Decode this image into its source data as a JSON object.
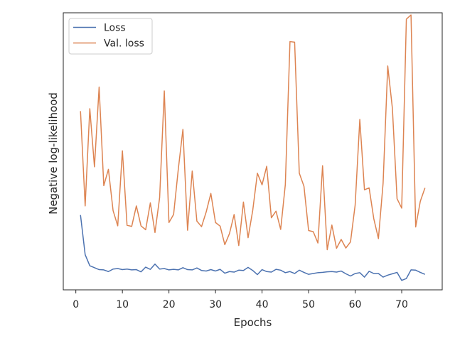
{
  "chart_data": {
    "type": "line",
    "xlabel": "Epochs",
    "ylabel": "Negative log-likelihood",
    "xlim": [
      -2.7,
      78.7
    ],
    "ylim": [
      0,
      1
    ],
    "x_ticks": [
      0,
      10,
      20,
      30,
      40,
      50,
      60,
      70
    ],
    "y_ticks_visible": false,
    "grid": false,
    "legend_placement": "top-left",
    "series": [
      {
        "name": "Loss",
        "color": "#4c72b0",
        "x": [
          1,
          2,
          3,
          4,
          5,
          6,
          7,
          8,
          9,
          10,
          11,
          12,
          13,
          14,
          15,
          16,
          17,
          18,
          19,
          20,
          21,
          22,
          23,
          24,
          25,
          26,
          27,
          28,
          29,
          30,
          31,
          32,
          33,
          34,
          35,
          36,
          37,
          38,
          39,
          40,
          41,
          42,
          43,
          44,
          45,
          46,
          47,
          48,
          49,
          50,
          51,
          52,
          53,
          54,
          55,
          56,
          57,
          58,
          59,
          60,
          61,
          62,
          63,
          64,
          65,
          66,
          67,
          68,
          69,
          70,
          71,
          72,
          73,
          74,
          75
        ],
        "values": [
          0.27,
          0.127,
          0.087,
          0.08,
          0.073,
          0.072,
          0.066,
          0.075,
          0.077,
          0.073,
          0.075,
          0.072,
          0.073,
          0.065,
          0.082,
          0.074,
          0.093,
          0.075,
          0.077,
          0.072,
          0.074,
          0.072,
          0.08,
          0.073,
          0.072,
          0.079,
          0.07,
          0.068,
          0.073,
          0.068,
          0.074,
          0.06,
          0.066,
          0.064,
          0.071,
          0.07,
          0.081,
          0.07,
          0.055,
          0.073,
          0.066,
          0.064,
          0.074,
          0.071,
          0.062,
          0.066,
          0.059,
          0.071,
          0.063,
          0.056,
          0.059,
          0.062,
          0.063,
          0.065,
          0.066,
          0.064,
          0.068,
          0.058,
          0.05,
          0.059,
          0.062,
          0.046,
          0.067,
          0.059,
          0.059,
          0.046,
          0.053,
          0.058,
          0.063,
          0.034,
          0.041,
          0.072,
          0.071,
          0.063,
          0.056
        ]
      },
      {
        "name": "Val. loss",
        "color": "#dd8452",
        "x": [
          1,
          2,
          3,
          4,
          5,
          6,
          7,
          8,
          9,
          10,
          11,
          12,
          13,
          14,
          15,
          16,
          17,
          18,
          19,
          20,
          21,
          22,
          23,
          24,
          25,
          26,
          27,
          28,
          29,
          30,
          31,
          32,
          33,
          34,
          35,
          36,
          37,
          38,
          39,
          40,
          41,
          42,
          43,
          44,
          45,
          46,
          47,
          48,
          49,
          50,
          51,
          52,
          53,
          54,
          55,
          56,
          57,
          58,
          59,
          60,
          61,
          62,
          63,
          64,
          65,
          66,
          67,
          68,
          69,
          70,
          71,
          72,
          73,
          74,
          75
        ],
        "values": [
          0.645,
          0.303,
          0.654,
          0.444,
          0.732,
          0.376,
          0.435,
          0.286,
          0.231,
          0.502,
          0.233,
          0.229,
          0.303,
          0.231,
          0.217,
          0.314,
          0.207,
          0.333,
          0.718,
          0.243,
          0.272,
          0.434,
          0.579,
          0.215,
          0.429,
          0.248,
          0.228,
          0.281,
          0.348,
          0.243,
          0.23,
          0.163,
          0.203,
          0.272,
          0.16,
          0.317,
          0.188,
          0.287,
          0.421,
          0.379,
          0.446,
          0.26,
          0.284,
          0.218,
          0.38,
          0.896,
          0.894,
          0.421,
          0.374,
          0.214,
          0.21,
          0.169,
          0.448,
          0.145,
          0.234,
          0.15,
          0.182,
          0.151,
          0.173,
          0.306,
          0.615,
          0.361,
          0.368,
          0.257,
          0.185,
          0.384,
          0.808,
          0.655,
          0.329,
          0.295,
          0.977,
          0.992,
          0.227,
          0.32,
          0.368
        ]
      }
    ]
  }
}
